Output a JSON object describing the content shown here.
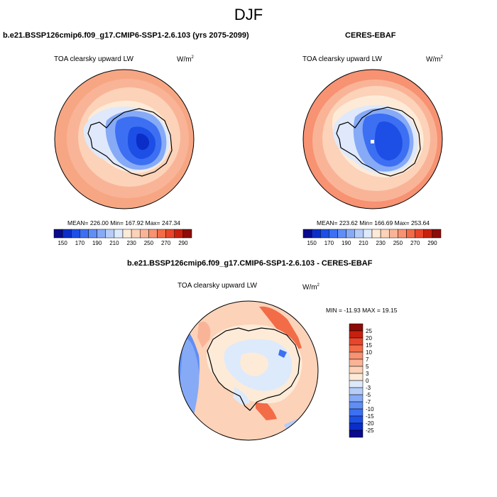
{
  "page": {
    "title": "DJF"
  },
  "panels": [
    {
      "title": "b.e21.BSSP126cmip6.f09_g17.CMIP6-SSP1-2.6.103 (yrs 2075-2099)",
      "variable": "TOA clearsky upward LW",
      "units_base": "W/m",
      "units_exp": "2",
      "stats": "MEAN= 226.00   Min= 167.92   Max= 247.34"
    },
    {
      "title": "CERES-EBAF",
      "variable": "TOA clearsky upward LW",
      "units_base": "W/m",
      "units_exp": "2",
      "stats": "MEAN= 223.62   Min= 166.69   Max= 253.64"
    },
    {
      "title": "b.e21.BSSP126cmip6.f09_g17.CMIP6-SSP1-2.6.103 - CERES-EBAF",
      "variable": "TOA clearsky upward LW",
      "units_base": "W/m",
      "units_exp": "2",
      "stats": "MIN = -11.93  MAX =  19.15"
    }
  ],
  "colorbars": {
    "absolute": {
      "orientation": "horizontal",
      "labels": [
        "150",
        "170",
        "190",
        "210",
        "230",
        "250",
        "270",
        "290"
      ],
      "colors": [
        "#0a0a8c",
        "#0b2ec8",
        "#1d4fe6",
        "#3c6ff2",
        "#5f8ef5",
        "#86aaf6",
        "#b6cdf9",
        "#ddeafb",
        "#fdebd8",
        "#fcd2b8",
        "#f9b497",
        "#f79272",
        "#f26c48",
        "#e8462a",
        "#c8200f",
        "#8c0c08"
      ]
    },
    "difference": {
      "orientation": "vertical",
      "labels": [
        "25",
        "20",
        "15",
        "10",
        "7",
        "5",
        "3",
        "0",
        "-3",
        "-5",
        "-7",
        "-10",
        "-15",
        "-20",
        "-25"
      ],
      "colors": [
        "#8c0c08",
        "#c8200f",
        "#e8462a",
        "#f26c48",
        "#f79272",
        "#f9b497",
        "#fcd2b8",
        "#fdebd8",
        "#ddeafb",
        "#b6cdf9",
        "#86aaf6",
        "#5f8ef5",
        "#3c6ff2",
        "#1d4fe6",
        "#0b2ec8",
        "#0a0a8c"
      ]
    }
  }
}
